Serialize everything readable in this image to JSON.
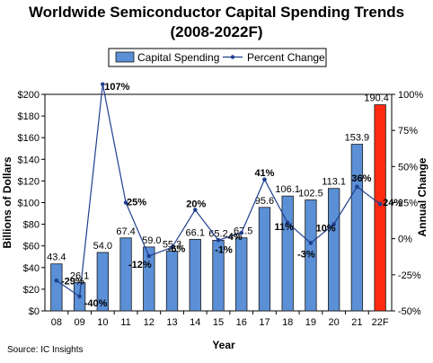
{
  "title_line1": "Worldwide Semiconductor Capital Spending Trends",
  "title_line2": "(2008-2022F)",
  "source": "Source: IC Insights",
  "chart_data": {
    "type": "bar+line",
    "categories": [
      "08",
      "09",
      "10",
      "11",
      "12",
      "13",
      "14",
      "15",
      "16",
      "17",
      "18",
      "19",
      "20",
      "21",
      "22F"
    ],
    "series": [
      {
        "name": "Capital Spending",
        "type": "bar",
        "axis": "left",
        "values": [
          43.4,
          26.1,
          54.0,
          67.4,
          59.0,
          55.3,
          66.1,
          65.2,
          67.5,
          95.6,
          106.1,
          102.5,
          113.1,
          153.9,
          190.4
        ],
        "value_labels": [
          "43.4",
          "26.1",
          "54.0",
          "67.4",
          "59.0",
          "55.3",
          "66.1",
          "65.2",
          "67.5",
          "95.6",
          "106.1",
          "102.5",
          "113.1",
          "153.9",
          "190.4"
        ],
        "color": "#5b8fd6",
        "highlight_color": "#ff2a10"
      },
      {
        "name": "Percent Change",
        "type": "line",
        "axis": "right",
        "values": [
          -29,
          -40,
          107,
          25,
          -12,
          -6,
          20,
          -1,
          4,
          41,
          11,
          -3,
          10,
          36,
          24
        ],
        "value_labels": [
          "-29%",
          "-40%",
          "107%",
          "25%",
          "-12%",
          "-6%",
          "20%",
          "-1%",
          "4%",
          "41%",
          "11%",
          "-3%",
          "10%",
          "36%",
          "24%"
        ],
        "color": "#1f3f8f"
      }
    ],
    "xlabel": "Year",
    "ylabel": "Billions of Dollars",
    "y2label": "Annual Change",
    "ylim": [
      0,
      200
    ],
    "y2lim": [
      -50,
      100
    ],
    "yticks": [
      "$0",
      "$20",
      "$40",
      "$60",
      "$80",
      "$100",
      "$120",
      "$140",
      "$160",
      "$180",
      "$200"
    ],
    "y2ticks": [
      "-50%",
      "-25%",
      "0%",
      "25%",
      "50%",
      "75%",
      "100%"
    ],
    "legend_position": "top",
    "grid": false
  }
}
